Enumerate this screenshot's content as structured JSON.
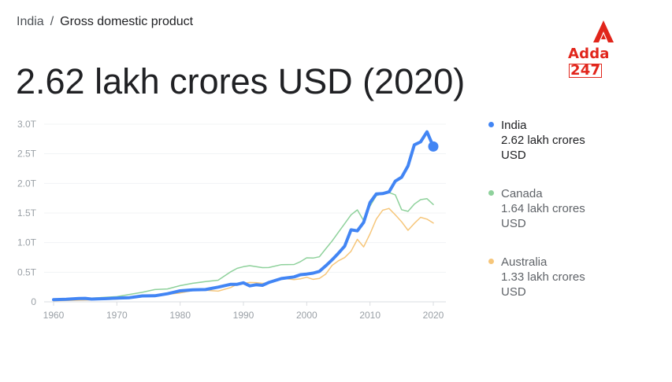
{
  "breadcrumb": {
    "root": "India",
    "separator": "/",
    "current": "Gross domestic product"
  },
  "headline": "2.62 lakh crores USD (2020)",
  "logo": {
    "text": "Adda",
    "number": "247",
    "color": "#e1251b"
  },
  "legend": [
    {
      "name": "India",
      "value": "2.62 lakh crores USD",
      "color": "#4285f4"
    },
    {
      "name": "Canada",
      "value": "1.64 lakh crores USD",
      "color": "#8ed19b"
    },
    {
      "name": "Australia",
      "value": "1.33 lakh crores USD",
      "color": "#f6c67a"
    }
  ],
  "chart_data": {
    "type": "line",
    "title": "",
    "xlabel": "",
    "ylabel": "",
    "xlim": [
      1960,
      2020
    ],
    "ylim": [
      0,
      3.0
    ],
    "x_ticks": [
      1960,
      1970,
      1980,
      1990,
      2000,
      2010,
      2020
    ],
    "x_tick_labels": [
      "1960",
      "1970",
      "1980",
      "1990",
      "2000",
      "2010",
      "2020"
    ],
    "y_ticks": [
      0,
      0.5,
      1.0,
      1.5,
      2.0,
      2.5,
      3.0
    ],
    "y_tick_labels": [
      "0",
      "0.5T",
      "1.0T",
      "1.5T",
      "2.0T",
      "2.5T",
      "3.0T"
    ],
    "grid": true,
    "legend_position": "right",
    "series": [
      {
        "name": "India",
        "color": "#4285f4",
        "points": [
          [
            1960,
            0.037
          ],
          [
            1962,
            0.042
          ],
          [
            1964,
            0.056
          ],
          [
            1965,
            0.059
          ],
          [
            1966,
            0.046
          ],
          [
            1968,
            0.053
          ],
          [
            1970,
            0.062
          ],
          [
            1972,
            0.071
          ],
          [
            1973,
            0.085
          ],
          [
            1974,
            0.099
          ],
          [
            1976,
            0.102
          ],
          [
            1978,
            0.137
          ],
          [
            1980,
            0.186
          ],
          [
            1982,
            0.203
          ],
          [
            1984,
            0.207
          ],
          [
            1986,
            0.248
          ],
          [
            1988,
            0.296
          ],
          [
            1989,
            0.296
          ],
          [
            1990,
            0.321
          ],
          [
            1991,
            0.27
          ],
          [
            1992,
            0.288
          ],
          [
            1993,
            0.279
          ],
          [
            1994,
            0.327
          ],
          [
            1996,
            0.393
          ],
          [
            1998,
            0.421
          ],
          [
            1999,
            0.458
          ],
          [
            2000,
            0.468
          ],
          [
            2001,
            0.485
          ],
          [
            2002,
            0.514
          ],
          [
            2003,
            0.607
          ],
          [
            2004,
            0.709
          ],
          [
            2005,
            0.82
          ],
          [
            2006,
            0.94
          ],
          [
            2007,
            1.216
          ],
          [
            2008,
            1.199
          ],
          [
            2009,
            1.342
          ],
          [
            2010,
            1.676
          ],
          [
            2011,
            1.823
          ],
          [
            2012,
            1.828
          ],
          [
            2013,
            1.857
          ],
          [
            2014,
            2.039
          ],
          [
            2015,
            2.104
          ],
          [
            2016,
            2.295
          ],
          [
            2017,
            2.651
          ],
          [
            2018,
            2.701
          ],
          [
            2019,
            2.871
          ],
          [
            2020,
            2.623
          ]
        ]
      },
      {
        "name": "Canada",
        "color": "#8ed19b",
        "points": [
          [
            1960,
            0.041
          ],
          [
            1965,
            0.057
          ],
          [
            1970,
            0.088
          ],
          [
            1974,
            0.16
          ],
          [
            1976,
            0.207
          ],
          [
            1978,
            0.218
          ],
          [
            1980,
            0.274
          ],
          [
            1982,
            0.313
          ],
          [
            1984,
            0.341
          ],
          [
            1986,
            0.365
          ],
          [
            1988,
            0.507
          ],
          [
            1989,
            0.565
          ],
          [
            1990,
            0.594
          ],
          [
            1991,
            0.611
          ],
          [
            1992,
            0.593
          ],
          [
            1993,
            0.578
          ],
          [
            1994,
            0.579
          ],
          [
            1996,
            0.628
          ],
          [
            1998,
            0.631
          ],
          [
            1999,
            0.678
          ],
          [
            2000,
            0.744
          ],
          [
            2001,
            0.739
          ],
          [
            2002,
            0.76
          ],
          [
            2003,
            0.895
          ],
          [
            2004,
            1.026
          ],
          [
            2005,
            1.173
          ],
          [
            2006,
            1.319
          ],
          [
            2007,
            1.469
          ],
          [
            2008,
            1.553
          ],
          [
            2009,
            1.371
          ],
          [
            2010,
            1.617
          ],
          [
            2011,
            1.793
          ],
          [
            2012,
            1.828
          ],
          [
            2013,
            1.847
          ],
          [
            2014,
            1.806
          ],
          [
            2015,
            1.556
          ],
          [
            2016,
            1.528
          ],
          [
            2017,
            1.65
          ],
          [
            2018,
            1.725
          ],
          [
            2019,
            1.742
          ],
          [
            2020,
            1.644
          ]
        ]
      },
      {
        "name": "Australia",
        "color": "#f6c67a",
        "points": [
          [
            1960,
            0.019
          ],
          [
            1965,
            0.03
          ],
          [
            1970,
            0.045
          ],
          [
            1974,
            0.098
          ],
          [
            1976,
            0.114
          ],
          [
            1978,
            0.128
          ],
          [
            1980,
            0.15
          ],
          [
            1982,
            0.19
          ],
          [
            1984,
            0.196
          ],
          [
            1986,
            0.181
          ],
          [
            1988,
            0.242
          ],
          [
            1989,
            0.298
          ],
          [
            1990,
            0.311
          ],
          [
            1991,
            0.326
          ],
          [
            1992,
            0.324
          ],
          [
            1993,
            0.312
          ],
          [
            1994,
            0.322
          ],
          [
            1996,
            0.4
          ],
          [
            1998,
            0.375
          ],
          [
            1999,
            0.388
          ],
          [
            2000,
            0.415
          ],
          [
            2001,
            0.379
          ],
          [
            2002,
            0.395
          ],
          [
            2003,
            0.467
          ],
          [
            2004,
            0.614
          ],
          [
            2005,
            0.693
          ],
          [
            2006,
            0.747
          ],
          [
            2007,
            0.853
          ],
          [
            2008,
            1.055
          ],
          [
            2009,
            0.928
          ],
          [
            2010,
            1.148
          ],
          [
            2011,
            1.398
          ],
          [
            2012,
            1.547
          ],
          [
            2013,
            1.577
          ],
          [
            2014,
            1.468
          ],
          [
            2015,
            1.351
          ],
          [
            2016,
            1.208
          ],
          [
            2017,
            1.325
          ],
          [
            2018,
            1.427
          ],
          [
            2019,
            1.397
          ],
          [
            2020,
            1.33
          ]
        ]
      }
    ]
  }
}
